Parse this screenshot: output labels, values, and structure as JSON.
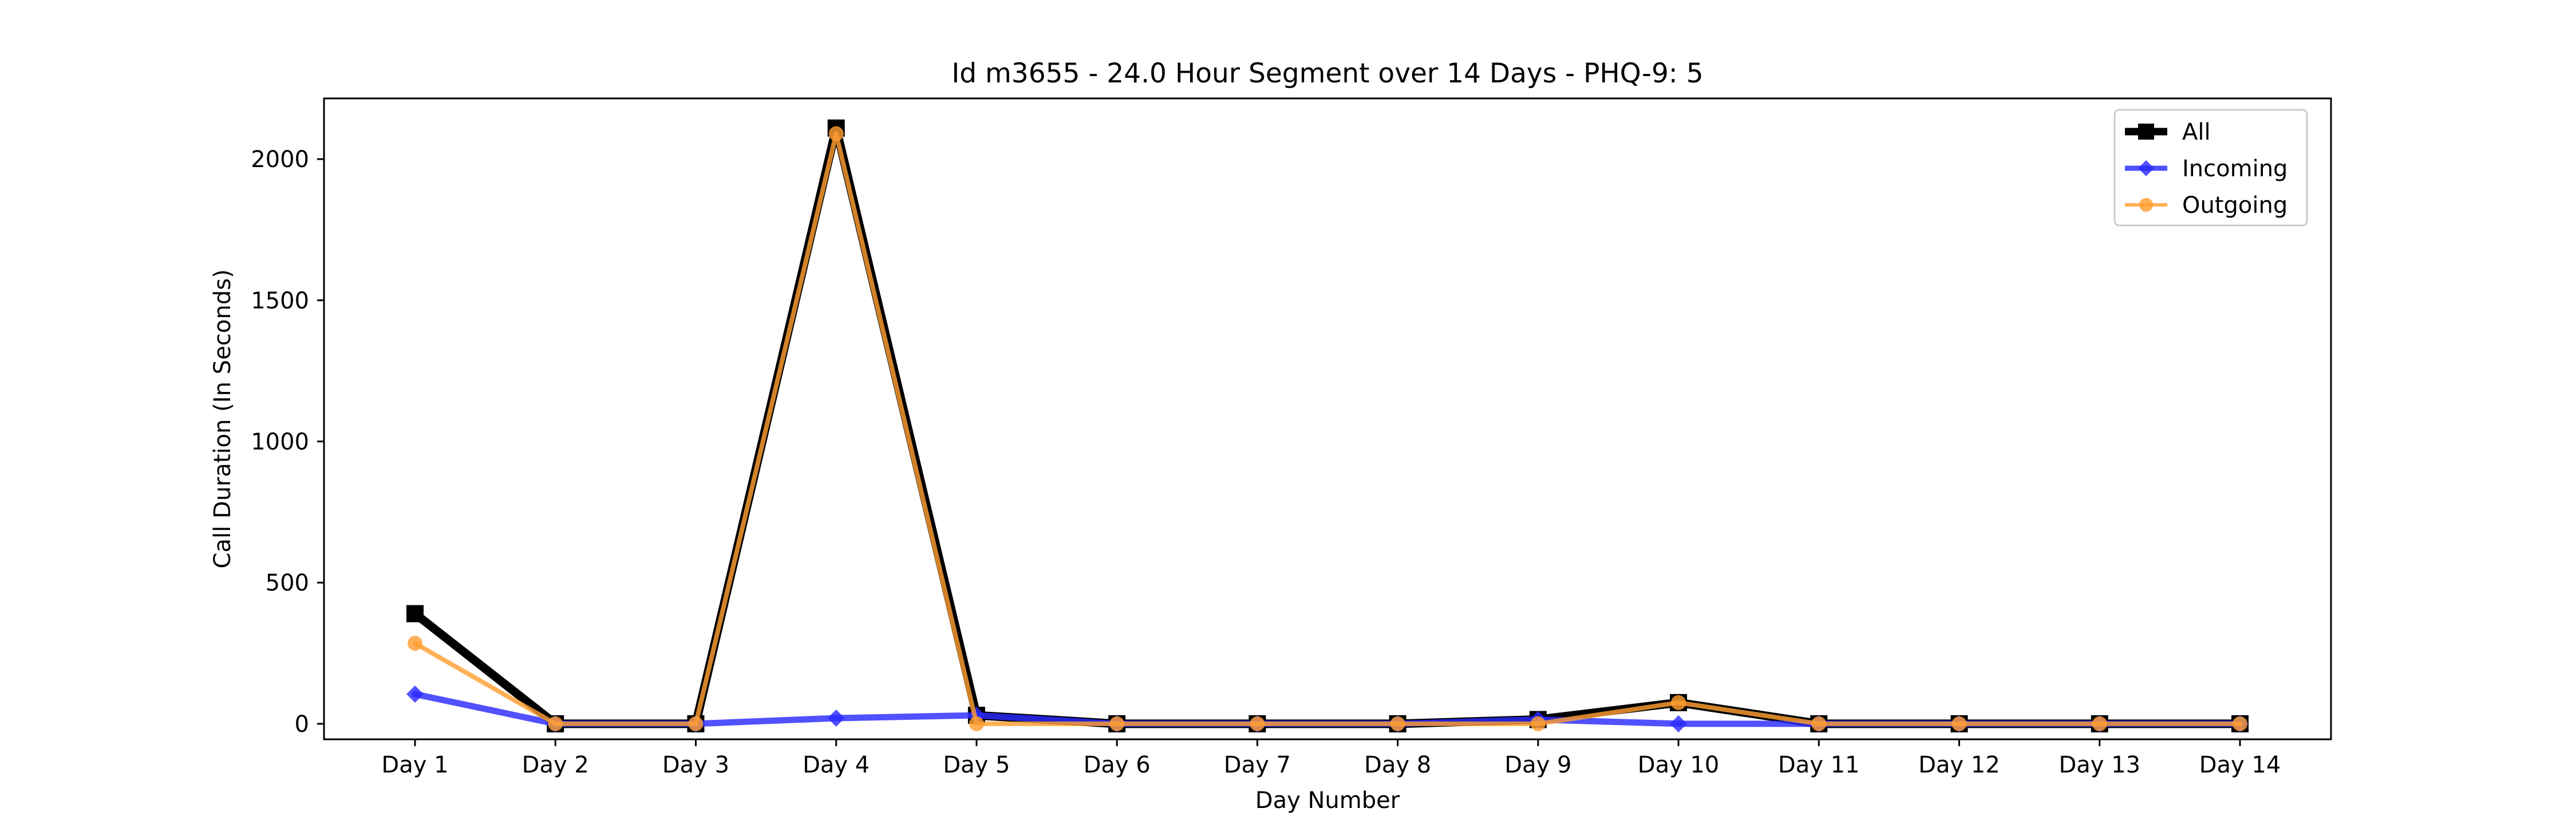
{
  "chart_data": {
    "type": "line",
    "title": "Id m3655 - 24.0 Hour Segment over 14 Days - PHQ-9: 5",
    "xlabel": "Day Number",
    "ylabel": "Call Duration (In Seconds)",
    "categories": [
      "Day 1",
      "Day 2",
      "Day 3",
      "Day 4",
      "Day 5",
      "Day 6",
      "Day 7",
      "Day 8",
      "Day 9",
      "Day 10",
      "Day 11",
      "Day 12",
      "Day 13",
      "Day 14"
    ],
    "yticks": [
      0,
      500,
      1000,
      1500,
      2000
    ],
    "ylim": [
      -55,
      2215
    ],
    "grid": false,
    "legend": {
      "placement": "top-right"
    },
    "series": [
      {
        "name": "All",
        "color": "#000000",
        "marker": "square",
        "values": [
          390,
          0,
          0,
          2110,
          30,
          0,
          0,
          0,
          15,
          75,
          0,
          0,
          0,
          0
        ]
      },
      {
        "name": "Incoming",
        "color": "#2b2bff",
        "marker": "diamond",
        "values": [
          105,
          0,
          0,
          20,
          30,
          0,
          0,
          0,
          15,
          0,
          0,
          0,
          0,
          0
        ]
      },
      {
        "name": "Outgoing",
        "color": "#ff9f32",
        "marker": "circle",
        "values": [
          285,
          0,
          0,
          2090,
          0,
          0,
          0,
          0,
          0,
          75,
          0,
          0,
          0,
          0
        ]
      }
    ]
  }
}
